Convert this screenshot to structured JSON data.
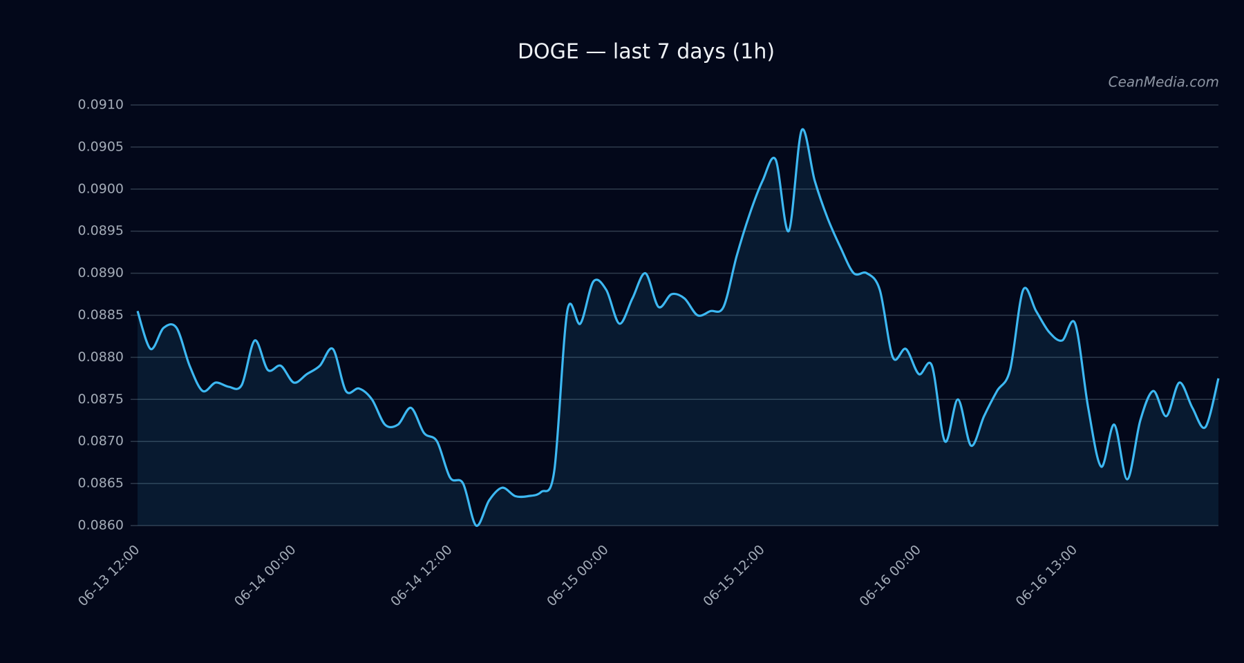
{
  "chart_data": {
    "type": "line",
    "title": "DOGE — last 7 days (1h)",
    "watermark": "CeanMedia.com",
    "categories": [
      "06-13 12:00",
      null,
      null,
      null,
      null,
      null,
      null,
      null,
      null,
      null,
      null,
      null,
      "06-14 00:00",
      null,
      null,
      null,
      null,
      null,
      null,
      null,
      null,
      null,
      null,
      null,
      "06-14 12:00",
      null,
      null,
      null,
      null,
      null,
      null,
      null,
      null,
      null,
      null,
      null,
      "06-15 00:00",
      null,
      null,
      null,
      null,
      null,
      null,
      null,
      null,
      null,
      null,
      null,
      "06-15 12:00",
      null,
      null,
      null,
      null,
      null,
      null,
      null,
      null,
      null,
      null,
      null,
      "06-16 00:00",
      null,
      null,
      null,
      null,
      null,
      null,
      null,
      null,
      null,
      null,
      null,
      "06-16 13:00",
      null,
      null,
      null,
      null,
      null,
      null,
      null,
      null,
      null,
      null,
      null
    ],
    "series": [
      {
        "name": "DOGE",
        "color": "#3db8f2",
        "values": [
          0.08855,
          0.0881,
          0.08835,
          0.08835,
          0.0879,
          0.0876,
          0.0877,
          0.08765,
          0.08767,
          0.0882,
          0.08785,
          0.0879,
          0.0877,
          0.0878,
          0.0879,
          0.0881,
          0.0876,
          0.08763,
          0.0875,
          0.0872,
          0.0872,
          0.0874,
          0.0871,
          0.087,
          0.08657,
          0.0865,
          0.086,
          0.0863,
          0.08645,
          0.08635,
          0.08635,
          0.0864,
          0.08665,
          0.08855,
          0.0884,
          0.0889,
          0.0888,
          0.0884,
          0.0887,
          0.089,
          0.0886,
          0.08875,
          0.0887,
          0.0885,
          0.08855,
          0.0886,
          0.0892,
          0.0897,
          0.0901,
          0.09035,
          0.0895,
          0.0907,
          0.0901,
          0.08965,
          0.0893,
          0.089,
          0.089,
          0.0888,
          0.088,
          0.0881,
          0.0878,
          0.0879,
          0.087,
          0.0875,
          0.08695,
          0.0873,
          0.0876,
          0.08785,
          0.0888,
          0.08855,
          0.0883,
          0.0882,
          0.0884,
          0.0874,
          0.0867,
          0.0872,
          0.08655,
          0.08725,
          0.0876,
          0.0873,
          0.0877,
          0.0874,
          0.08717,
          0.08775
        ]
      }
    ],
    "ylim": [
      0.086,
      0.091
    ],
    "yticks": [
      {
        "value": 0.086,
        "label": "0.0860"
      },
      0.0865,
      {
        "value": 0.087,
        "label": "0.0870"
      },
      0.0875,
      {
        "value": 0.088,
        "label": "0.0880"
      },
      0.0885,
      {
        "value": 0.089,
        "label": "0.0890"
      },
      0.0895,
      {
        "value": 0.09,
        "label": "0.0900"
      },
      0.0905,
      {
        "value": 0.091,
        "label": "0.0910"
      }
    ],
    "grid": true,
    "fill_area": true
  }
}
